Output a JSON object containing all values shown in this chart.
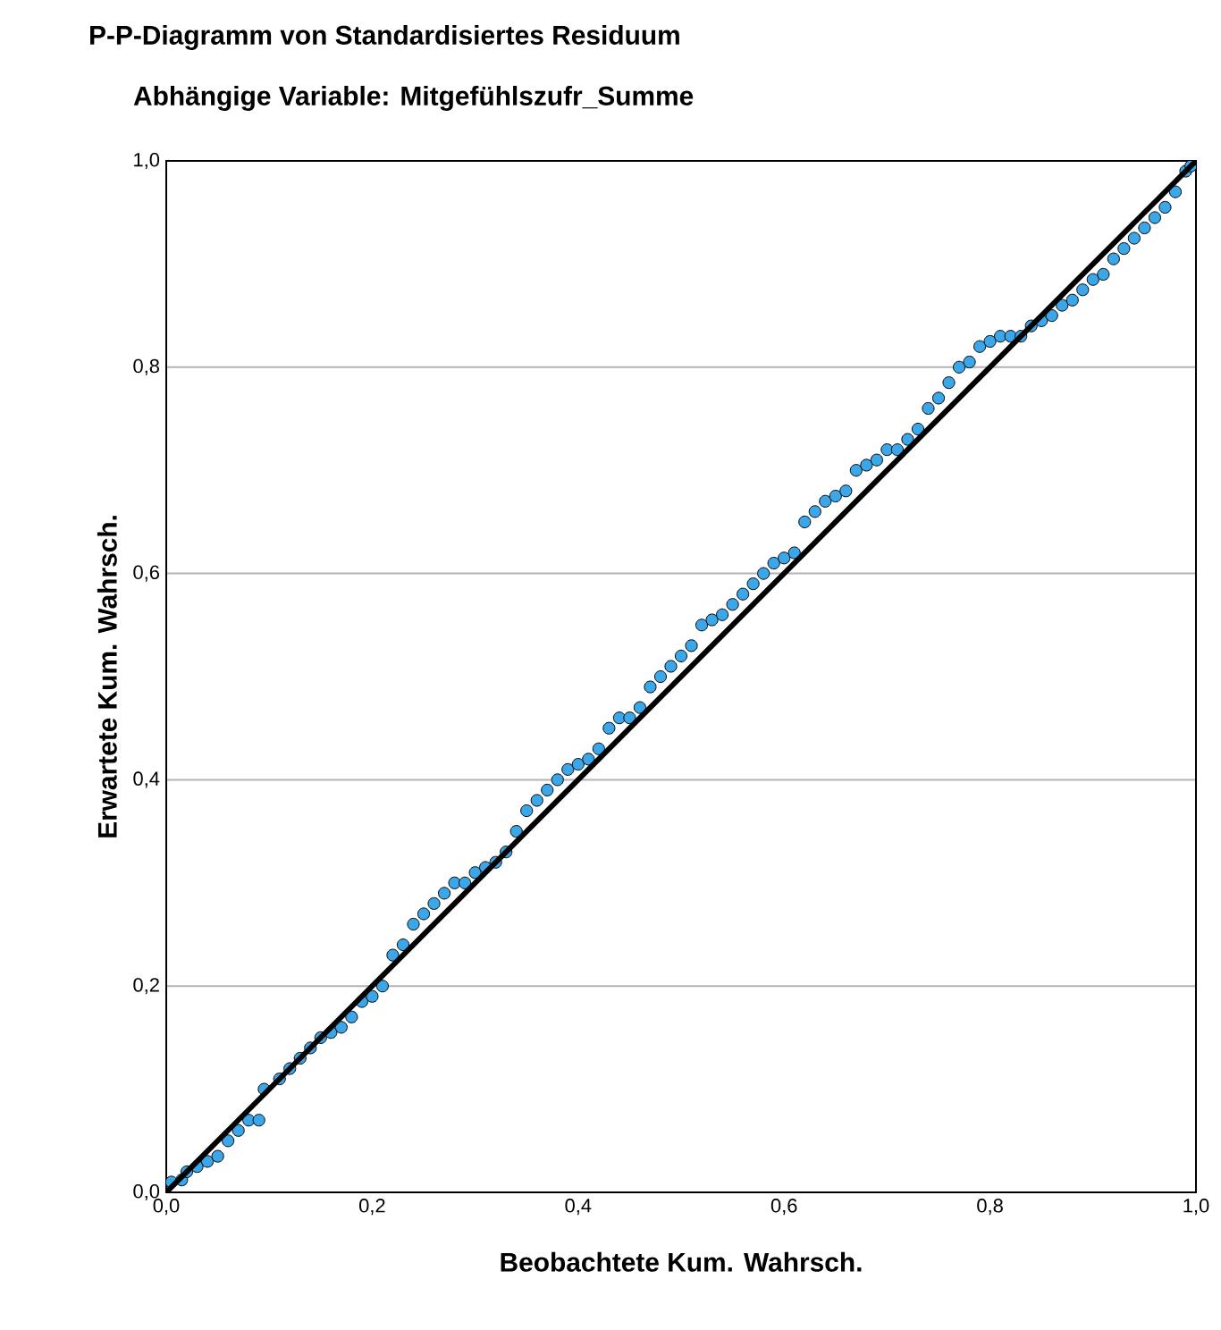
{
  "chart_data": {
    "type": "scatter",
    "title": "P-P-Diagramm von Standardisiertes Residuum",
    "subtitle": "Abhängige Variable: Mitgefühlszufr_Summe",
    "xlabel": "Beobachtete Kum. Wahrsch.",
    "ylabel": "Erwartete Kum. Wahrsch.",
    "grid": "y",
    "xlim": [
      0,
      1
    ],
    "ylim": [
      0,
      1
    ],
    "xticks": [
      {
        "value": 0,
        "label": "0,0"
      },
      {
        "value": 0.2,
        "label": "0,2"
      },
      {
        "value": 0.4,
        "label": "0,4"
      },
      {
        "value": 0.6,
        "label": "0,6"
      },
      {
        "value": 0.8,
        "label": "0,8"
      },
      {
        "value": 1,
        "label": "1,0"
      }
    ],
    "yticks": [
      {
        "value": 0,
        "label": "0,0"
      },
      {
        "value": 0.2,
        "label": "0,2"
      },
      {
        "value": 0.4,
        "label": "0,4"
      },
      {
        "value": 0.6,
        "label": "0,6"
      },
      {
        "value": 0.8,
        "label": "0,8"
      },
      {
        "value": 1,
        "label": "1,0"
      }
    ],
    "series": [
      {
        "color": "#3ba7e8",
        "x": [
          0.005,
          0.015,
          0.02,
          0.03,
          0.04,
          0.05,
          0.06,
          0.07,
          0.08,
          0.09,
          0.095,
          0.11,
          0.12,
          0.13,
          0.14,
          0.15,
          0.16,
          0.17,
          0.18,
          0.19,
          0.2,
          0.21,
          0.22,
          0.23,
          0.24,
          0.25,
          0.26,
          0.27,
          0.28,
          0.29,
          0.3,
          0.31,
          0.32,
          0.33,
          0.34,
          0.35,
          0.36,
          0.37,
          0.38,
          0.39,
          0.4,
          0.41,
          0.42,
          0.43,
          0.44,
          0.45,
          0.46,
          0.47,
          0.48,
          0.49,
          0.5,
          0.51,
          0.52,
          0.53,
          0.54,
          0.55,
          0.56,
          0.57,
          0.58,
          0.59,
          0.6,
          0.61,
          0.62,
          0.63,
          0.64,
          0.65,
          0.66,
          0.67,
          0.68,
          0.69,
          0.7,
          0.71,
          0.72,
          0.73,
          0.74,
          0.75,
          0.76,
          0.77,
          0.78,
          0.79,
          0.8,
          0.81,
          0.82,
          0.83,
          0.84,
          0.85,
          0.86,
          0.87,
          0.88,
          0.89,
          0.9,
          0.91,
          0.92,
          0.93,
          0.94,
          0.95,
          0.96,
          0.97,
          0.98,
          0.99,
          0.995
        ],
        "values": [
          0.01,
          0.012,
          0.02,
          0.025,
          0.03,
          0.035,
          0.05,
          0.06,
          0.07,
          0.07,
          0.1,
          0.11,
          0.12,
          0.13,
          0.14,
          0.15,
          0.155,
          0.16,
          0.17,
          0.185,
          0.19,
          0.2,
          0.23,
          0.24,
          0.26,
          0.27,
          0.28,
          0.29,
          0.3,
          0.3,
          0.31,
          0.315,
          0.32,
          0.33,
          0.35,
          0.37,
          0.38,
          0.39,
          0.4,
          0.41,
          0.415,
          0.42,
          0.43,
          0.45,
          0.46,
          0.46,
          0.47,
          0.49,
          0.5,
          0.51,
          0.52,
          0.53,
          0.55,
          0.555,
          0.56,
          0.57,
          0.58,
          0.59,
          0.6,
          0.61,
          0.615,
          0.62,
          0.65,
          0.66,
          0.67,
          0.675,
          0.68,
          0.7,
          0.705,
          0.71,
          0.72,
          0.72,
          0.73,
          0.74,
          0.76,
          0.77,
          0.785,
          0.8,
          0.805,
          0.82,
          0.825,
          0.83,
          0.83,
          0.83,
          0.84,
          0.845,
          0.85,
          0.86,
          0.865,
          0.875,
          0.885,
          0.89,
          0.905,
          0.915,
          0.925,
          0.935,
          0.945,
          0.955,
          0.97,
          0.99,
          0.995
        ]
      },
      {
        "type": "line",
        "color": "#000000",
        "x": [
          0,
          1
        ],
        "values": [
          0,
          1
        ]
      }
    ]
  }
}
